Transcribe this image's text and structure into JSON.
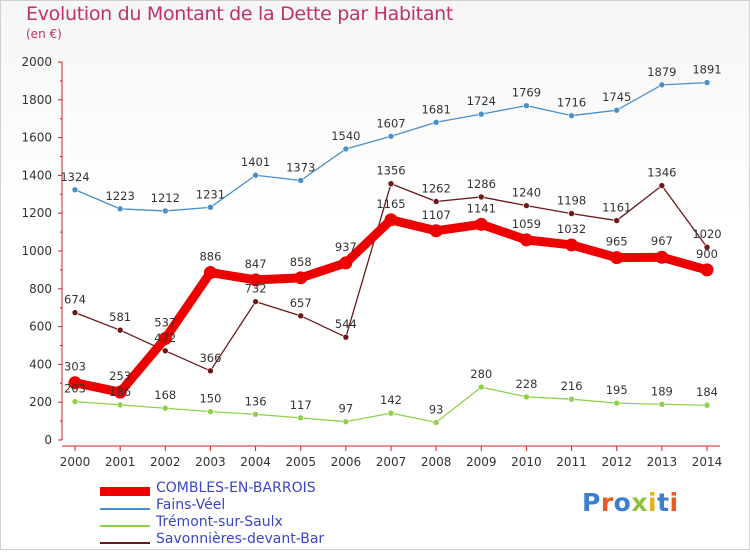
{
  "header": {
    "title": "Evolution du Montant de la Dette par Habitant",
    "subtitle": "(en €)"
  },
  "brand": {
    "text": "Proxiti",
    "colors": [
      "#3a7fd0",
      "#e85a1e",
      "#3a7fd0",
      "#8fc43a",
      "#e8b018",
      "#3a7fd0",
      "#e85a1e"
    ]
  },
  "chart_data": {
    "type": "line",
    "title": "Evolution du Montant de la Dette par Habitant",
    "subtitle": "(en €)",
    "xlabel": "",
    "ylabel": "",
    "ylim": [
      0,
      2000
    ],
    "yticks": [
      0,
      200,
      400,
      600,
      800,
      1000,
      1200,
      1400,
      1600,
      1800,
      2000
    ],
    "categories": [
      "2000",
      "2001",
      "2002",
      "2003",
      "2004",
      "2005",
      "2006",
      "2007",
      "2008",
      "2009",
      "2010",
      "2011",
      "2012",
      "2013",
      "2014"
    ],
    "grid": false,
    "legend_position": "bottom-left",
    "series": [
      {
        "name": "COMBLES-EN-BARROIS",
        "color": "#ee0000",
        "values": [
          303,
          253,
          537,
          886,
          847,
          858,
          937,
          1165,
          1107,
          1141,
          1059,
          1032,
          965,
          967,
          900
        ],
        "labels": [
          "303",
          "253",
          "537",
          "886",
          "847",
          "858",
          "937",
          "1165",
          "1107",
          "1141",
          "1059",
          "1032",
          "965",
          "967",
          "900"
        ]
      },
      {
        "name": "Fains-Véel",
        "color": "#4a8fc8",
        "values": [
          1324,
          1223,
          1212,
          1231,
          1401,
          1373,
          1540,
          1607,
          1681,
          1724,
          1769,
          1716,
          1745,
          1879,
          1891
        ],
        "labels": [
          "1324",
          "1223",
          "1212",
          "1231",
          "1401",
          "1373",
          "1540",
          "1607",
          "1681",
          "1724",
          "1769",
          "1716",
          "1745",
          "1879",
          "1891"
        ]
      },
      {
        "name": "Trémont-sur-Saulx",
        "color": "#8fd04a",
        "values": [
          203,
          186,
          168,
          150,
          136,
          117,
          97,
          142,
          93,
          280,
          228,
          216,
          195,
          189,
          184
        ],
        "labels": [
          "203",
          "186",
          "168",
          "150",
          "136",
          "117",
          "97",
          "142",
          "93",
          "280",
          "228",
          "216",
          "195",
          "189",
          "184"
        ]
      },
      {
        "name": "Savonnières-devant-Bar",
        "color": "#6a1818",
        "values": [
          674,
          581,
          472,
          366,
          732,
          657,
          544,
          1356,
          1262,
          1286,
          1240,
          1198,
          1161,
          1346,
          1020
        ],
        "labels": [
          "674",
          "581",
          "472",
          "366",
          "732",
          "657",
          "544",
          "1356",
          "1262",
          "1286",
          "1240",
          "1198",
          "1161",
          "1346",
          "1020"
        ]
      }
    ]
  }
}
